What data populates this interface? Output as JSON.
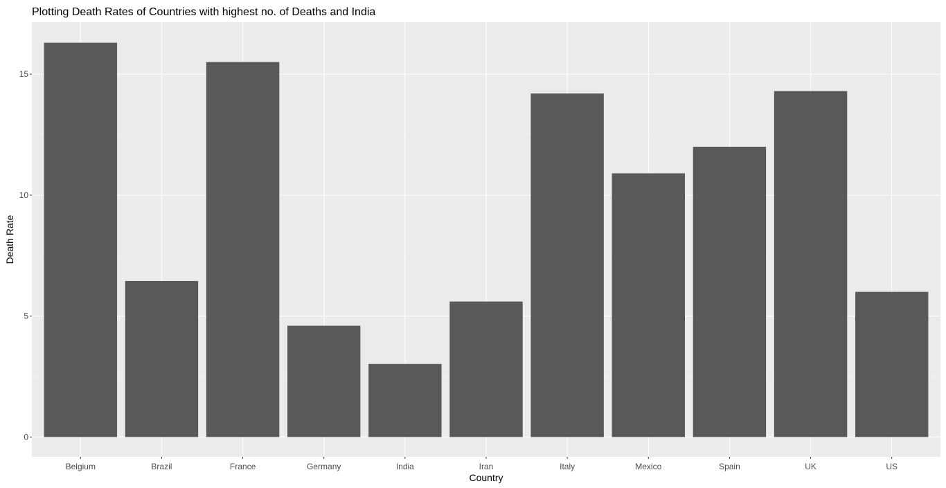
{
  "colors": {
    "panel_background": "#ebebeb",
    "grid_major": "#ffffff",
    "grid_minor": "#f5f5f5",
    "bar_fill": "#595959",
    "tick_color": "#333333"
  },
  "chart_data": {
    "type": "bar",
    "title": "Plotting Death Rates of Countries with highest no. of Deaths and India",
    "xlabel": "Country",
    "ylabel": "Death Rate",
    "categories": [
      "Belgium",
      "Brazil",
      "France",
      "Germany",
      "India",
      "Iran",
      "Italy",
      "Mexico",
      "Spain",
      "UK",
      "US"
    ],
    "values": [
      16.3,
      6.45,
      15.5,
      4.6,
      3.02,
      5.6,
      14.2,
      10.9,
      12.0,
      14.3,
      6.0
    ],
    "ylim": [
      -0.82,
      17.15
    ],
    "y_ticks": [
      0,
      5,
      10,
      15
    ],
    "y_tick_labels": [
      "0",
      "5",
      "10",
      "15"
    ],
    "grid": true,
    "legend": "none"
  }
}
